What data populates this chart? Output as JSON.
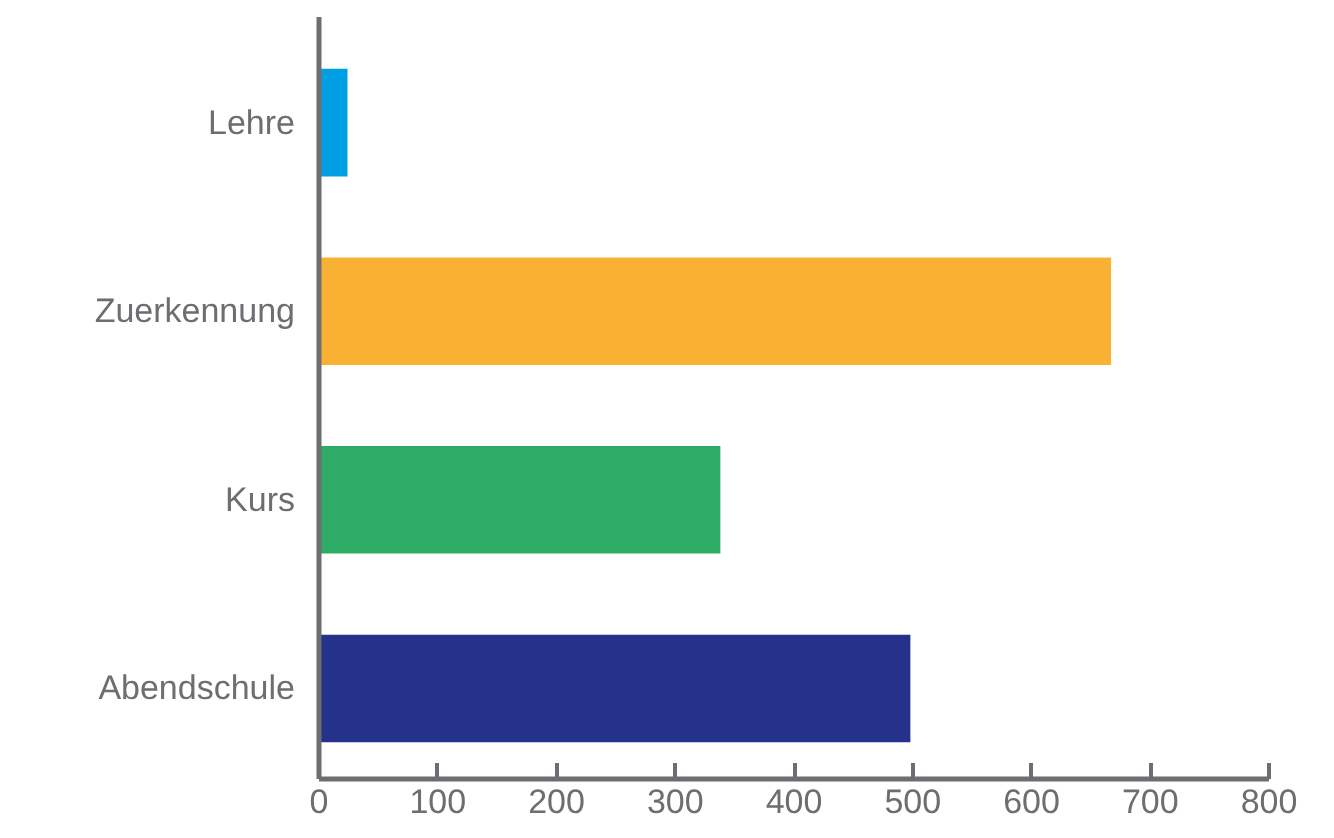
{
  "chart_data": {
    "type": "bar",
    "orientation": "horizontal",
    "categories": [
      "Lehre",
      "Zuerkennung",
      "Kurs",
      "Abendschule"
    ],
    "values": [
      24,
      667,
      338,
      498
    ],
    "colors": [
      "#009fe3",
      "#f8b133",
      "#2eac66",
      "#253289"
    ],
    "xlim": [
      0,
      800
    ],
    "xticks": [
      0,
      100,
      200,
      300,
      400,
      500,
      600,
      700,
      800
    ]
  }
}
